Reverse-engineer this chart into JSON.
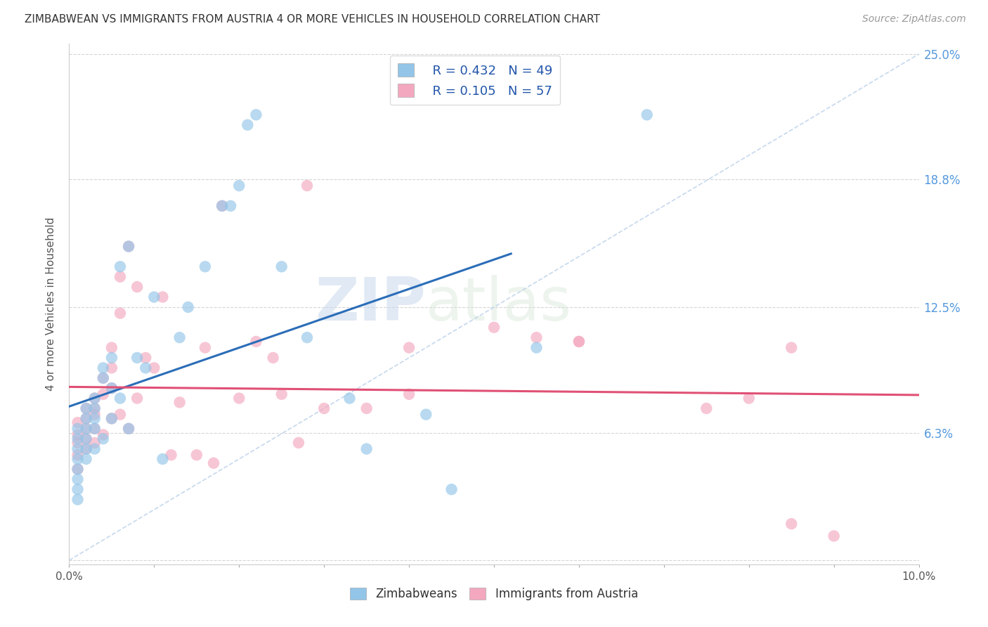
{
  "title": "ZIMBABWEAN VS IMMIGRANTS FROM AUSTRIA 4 OR MORE VEHICLES IN HOUSEHOLD CORRELATION CHART",
  "source": "Source: ZipAtlas.com",
  "ylabel": "4 or more Vehicles in Household",
  "xlim": [
    0.0,
    0.1
  ],
  "ylim": [
    -0.002,
    0.255
  ],
  "xticks": [
    0.0,
    0.01,
    0.02,
    0.03,
    0.04,
    0.05,
    0.06,
    0.07,
    0.08,
    0.09,
    0.1
  ],
  "xtick_labels_show": [
    "0.0%",
    "",
    "",
    "",
    "",
    "",
    "",
    "",
    "",
    "",
    "10.0%"
  ],
  "yticks_right": [
    0.0,
    0.063,
    0.125,
    0.188,
    0.25
  ],
  "ytick_labels_right": [
    "",
    "6.3%",
    "12.5%",
    "18.8%",
    "25.0%"
  ],
  "legend_R1": "R = 0.432",
  "legend_N1": "N = 49",
  "legend_R2": "R = 0.105",
  "legend_N2": "N = 57",
  "legend_label1": "Zimbabweans",
  "legend_label2": "Immigrants from Austria",
  "color_blue": "#92c5e8",
  "color_pink": "#f4a8bf",
  "color_blue_line": "#2b6db8",
  "color_pink_line": "#e05075",
  "color_diag_line": "#b8cfe8",
  "watermark_zip": "ZIP",
  "watermark_atlas": "atlas",
  "blue_scatter_x": [
    0.001,
    0.001,
    0.001,
    0.001,
    0.001,
    0.001,
    0.001,
    0.001,
    0.002,
    0.002,
    0.002,
    0.002,
    0.002,
    0.002,
    0.003,
    0.003,
    0.003,
    0.003,
    0.003,
    0.004,
    0.004,
    0.004,
    0.005,
    0.005,
    0.005,
    0.006,
    0.006,
    0.007,
    0.007,
    0.008,
    0.009,
    0.01,
    0.011,
    0.013,
    0.014,
    0.016,
    0.018,
    0.019,
    0.02,
    0.021,
    0.022,
    0.025,
    0.028,
    0.033,
    0.035,
    0.042,
    0.045,
    0.055,
    0.068
  ],
  "blue_scatter_y": [
    0.065,
    0.06,
    0.055,
    0.05,
    0.045,
    0.04,
    0.035,
    0.03,
    0.075,
    0.07,
    0.065,
    0.06,
    0.055,
    0.05,
    0.08,
    0.075,
    0.07,
    0.065,
    0.055,
    0.095,
    0.09,
    0.06,
    0.1,
    0.085,
    0.07,
    0.145,
    0.08,
    0.155,
    0.065,
    0.1,
    0.095,
    0.13,
    0.05,
    0.11,
    0.125,
    0.145,
    0.175,
    0.175,
    0.185,
    0.215,
    0.22,
    0.145,
    0.11,
    0.08,
    0.055,
    0.072,
    0.035,
    0.105,
    0.22
  ],
  "pink_scatter_x": [
    0.001,
    0.001,
    0.001,
    0.001,
    0.001,
    0.002,
    0.002,
    0.002,
    0.002,
    0.002,
    0.003,
    0.003,
    0.003,
    0.003,
    0.003,
    0.004,
    0.004,
    0.004,
    0.005,
    0.005,
    0.005,
    0.005,
    0.006,
    0.006,
    0.006,
    0.007,
    0.007,
    0.008,
    0.008,
    0.009,
    0.01,
    0.011,
    0.012,
    0.013,
    0.015,
    0.016,
    0.017,
    0.018,
    0.02,
    0.022,
    0.024,
    0.025,
    0.027,
    0.028,
    0.03,
    0.035,
    0.04,
    0.04,
    0.05,
    0.055,
    0.06,
    0.06,
    0.075,
    0.08,
    0.085,
    0.085,
    0.09
  ],
  "pink_scatter_y": [
    0.068,
    0.062,
    0.058,
    0.052,
    0.045,
    0.075,
    0.07,
    0.065,
    0.06,
    0.055,
    0.08,
    0.075,
    0.072,
    0.065,
    0.058,
    0.09,
    0.082,
    0.062,
    0.105,
    0.095,
    0.085,
    0.07,
    0.14,
    0.122,
    0.072,
    0.155,
    0.065,
    0.135,
    0.08,
    0.1,
    0.095,
    0.13,
    0.052,
    0.078,
    0.052,
    0.105,
    0.048,
    0.175,
    0.08,
    0.108,
    0.1,
    0.082,
    0.058,
    0.185,
    0.075,
    0.075,
    0.105,
    0.082,
    0.115,
    0.11,
    0.108,
    0.108,
    0.075,
    0.08,
    0.105,
    0.018,
    0.012
  ]
}
